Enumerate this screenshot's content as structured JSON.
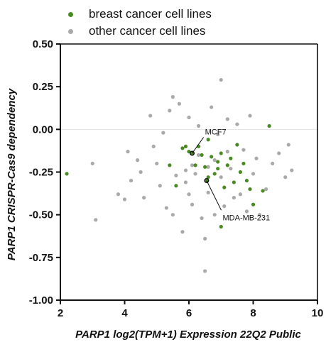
{
  "chart_data": {
    "type": "scatter",
    "xlabel": "PARP1 log2(TPM+1) Expression 22Q2 Public",
    "ylabel": "PARP1 CRISPR-Cas9 dependency",
    "xlim": [
      2,
      10
    ],
    "ylim": [
      -1.0,
      0.5
    ],
    "xticks": [
      "2",
      "4",
      "6",
      "8",
      "10"
    ],
    "yticks": [
      "-1.00",
      "-0.75",
      "-0.50",
      "-0.25",
      "0.00",
      "0.25",
      "0.50"
    ],
    "reference_line_y": 0,
    "grid": false,
    "legend_position": "top-left",
    "series": [
      {
        "name": "breast cancer cell lines",
        "color": "#4a8a22",
        "points": [
          [
            2.2,
            -0.26
          ],
          [
            5.6,
            -0.33
          ],
          [
            5.8,
            -0.11
          ],
          [
            5.9,
            -0.1
          ],
          [
            6.0,
            -0.13
          ],
          [
            6.2,
            -0.21
          ],
          [
            6.3,
            -0.1
          ],
          [
            6.4,
            -0.15
          ],
          [
            6.5,
            -0.22
          ],
          [
            6.6,
            -0.28
          ],
          [
            6.6,
            -0.06
          ],
          [
            6.7,
            -0.16
          ],
          [
            6.8,
            -0.26
          ],
          [
            6.9,
            -0.19
          ],
          [
            7.0,
            -0.14
          ],
          [
            7.0,
            -0.57
          ],
          [
            7.1,
            -0.34
          ],
          [
            7.2,
            -0.21
          ],
          [
            7.3,
            -0.17
          ],
          [
            7.4,
            -0.31
          ],
          [
            7.5,
            -0.09
          ],
          [
            7.6,
            -0.25
          ],
          [
            7.7,
            -0.2
          ],
          [
            7.9,
            -0.35
          ],
          [
            8.0,
            -0.44
          ],
          [
            8.3,
            -0.36
          ],
          [
            8.5,
            0.02
          ],
          [
            6.1,
            -0.14
          ],
          [
            6.55,
            -0.3
          ],
          [
            5.4,
            -0.21
          ],
          [
            6.9,
            -0.23
          ],
          [
            7.8,
            -0.3
          ]
        ]
      },
      {
        "name": "other cancer cell lines",
        "color": "#a9a9a9",
        "points": [
          [
            3.0,
            -0.2
          ],
          [
            3.1,
            -0.53
          ],
          [
            3.8,
            -0.38
          ],
          [
            4.0,
            -0.41
          ],
          [
            4.1,
            -0.13
          ],
          [
            4.2,
            -0.3
          ],
          [
            4.4,
            -0.18
          ],
          [
            4.5,
            -0.25
          ],
          [
            4.6,
            -0.4
          ],
          [
            4.8,
            0.08
          ],
          [
            4.9,
            -0.1
          ],
          [
            5.0,
            -0.2
          ],
          [
            5.1,
            -0.33
          ],
          [
            5.2,
            -0.02
          ],
          [
            5.3,
            -0.46
          ],
          [
            5.4,
            0.11
          ],
          [
            5.5,
            0.19
          ],
          [
            5.5,
            -0.5
          ],
          [
            5.6,
            -0.27
          ],
          [
            5.7,
            0.15
          ],
          [
            5.8,
            -0.6
          ],
          [
            5.9,
            -0.31
          ],
          [
            6.0,
            -0.38
          ],
          [
            6.0,
            0.07
          ],
          [
            6.1,
            -0.44
          ],
          [
            6.2,
            -0.26
          ],
          [
            6.3,
            0.02
          ],
          [
            6.4,
            -0.52
          ],
          [
            6.5,
            -0.64
          ],
          [
            6.5,
            -0.83
          ],
          [
            6.6,
            -0.37
          ],
          [
            6.7,
            0.13
          ],
          [
            6.8,
            -0.5
          ],
          [
            6.9,
            -0.03
          ],
          [
            7.0,
            -0.28
          ],
          [
            7.0,
            0.29
          ],
          [
            7.1,
            -0.45
          ],
          [
            7.2,
            0.06
          ],
          [
            7.3,
            -0.23
          ],
          [
            7.4,
            -0.4
          ],
          [
            7.5,
            0.03
          ],
          [
            7.6,
            -0.38
          ],
          [
            7.7,
            -0.12
          ],
          [
            7.8,
            -0.48
          ],
          [
            7.9,
            0.08
          ],
          [
            8.0,
            -0.26
          ],
          [
            8.1,
            -0.17
          ],
          [
            8.2,
            -0.5
          ],
          [
            8.4,
            -0.35
          ],
          [
            8.6,
            -0.2
          ],
          [
            8.8,
            -0.14
          ],
          [
            9.0,
            -0.28
          ],
          [
            9.1,
            -0.09
          ],
          [
            9.2,
            -0.24
          ],
          [
            6.1,
            -0.21
          ],
          [
            6.3,
            -0.15
          ],
          [
            6.8,
            -0.18
          ],
          [
            7.2,
            -0.13
          ],
          [
            5.9,
            -0.24
          ],
          [
            6.6,
            -0.22
          ]
        ]
      }
    ],
    "annotations": [
      {
        "label": "MCF7",
        "point": [
          6.1,
          -0.14
        ],
        "text_anchor": [
          6.5,
          -0.03
        ]
      },
      {
        "label": "MDA-MB-231",
        "point": [
          6.55,
          -0.3
        ],
        "text_anchor": [
          7.05,
          -0.49
        ]
      }
    ]
  }
}
